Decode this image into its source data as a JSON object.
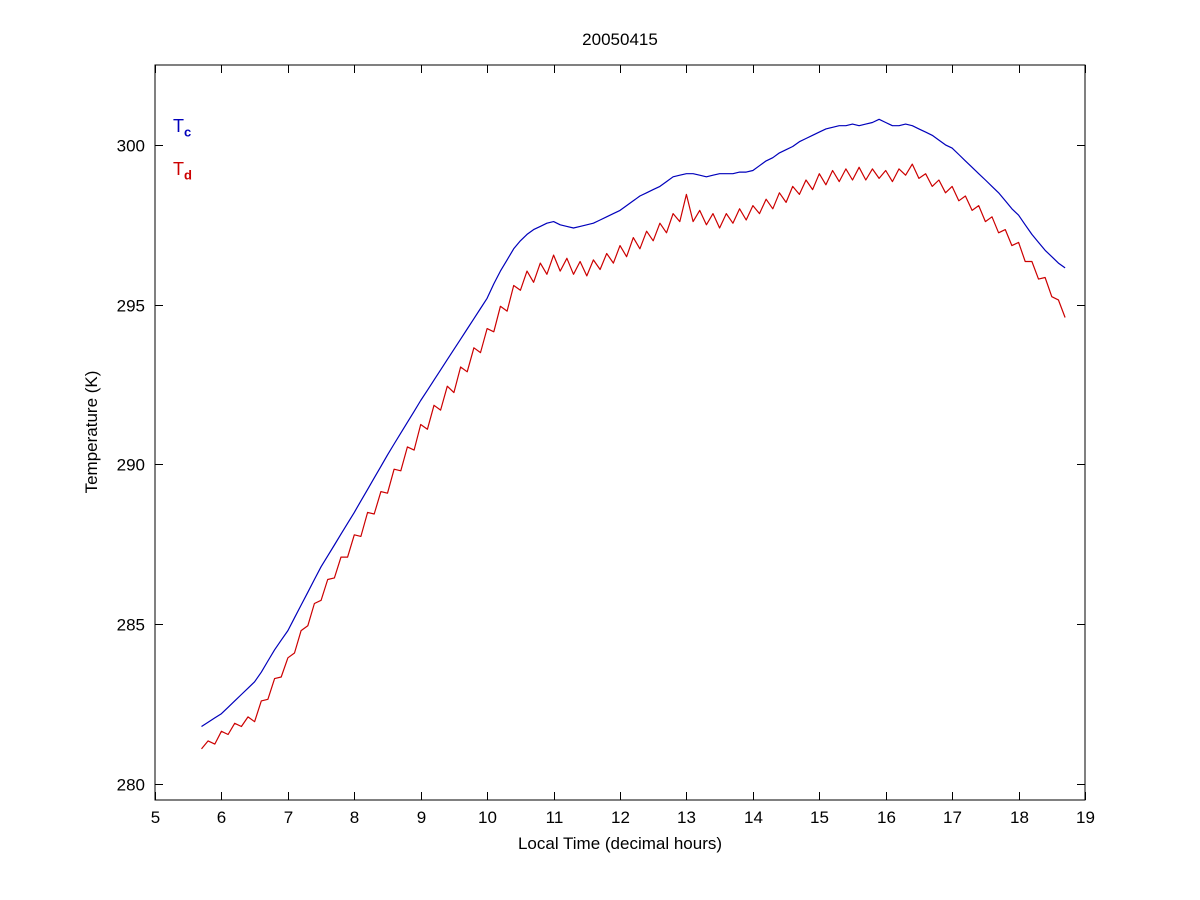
{
  "chart_data": {
    "type": "line",
    "title": "20050415",
    "xlabel": "Local Time (decimal hours)",
    "ylabel": "Temperature (K)",
    "xlim": [
      5,
      19
    ],
    "ylim": [
      279.5,
      302.5
    ],
    "xticks": [
      5,
      6,
      7,
      8,
      9,
      10,
      11,
      12,
      13,
      14,
      15,
      16,
      17,
      18,
      19
    ],
    "yticks": [
      280,
      285,
      290,
      295,
      300
    ],
    "grid": false,
    "legend_position": "top-left-inside",
    "x_start": 5.7,
    "x_step": 0.1,
    "axis_color": "#000000",
    "background_color": "#ffffff",
    "legend": [
      {
        "main": "T",
        "sub": "c",
        "color": "#0000bb"
      },
      {
        "main": "T",
        "sub": "d",
        "color": "#cc0000"
      }
    ],
    "series": [
      {
        "name": "Tc",
        "color": "#0000bb",
        "values": [
          281.8,
          281.93,
          282.07,
          282.2,
          282.4,
          282.6,
          282.8,
          283.0,
          283.2,
          283.5,
          283.85,
          284.2,
          284.5,
          284.8,
          285.2,
          285.6,
          286.0,
          286.4,
          286.8,
          287.14,
          287.48,
          287.82,
          288.16,
          288.5,
          288.86,
          289.22,
          289.58,
          289.94,
          290.3,
          290.64,
          290.98,
          291.32,
          291.66,
          292.0,
          292.32,
          292.64,
          292.96,
          293.28,
          293.6,
          293.92,
          294.24,
          294.56,
          294.88,
          295.2,
          295.65,
          296.05,
          296.4,
          296.75,
          297.0,
          297.2,
          297.35,
          297.45,
          297.55,
          297.6,
          297.5,
          297.45,
          297.4,
          297.45,
          297.5,
          297.55,
          297.65,
          297.75,
          297.85,
          297.95,
          298.1,
          298.25,
          298.4,
          298.5,
          298.6,
          298.7,
          298.85,
          299.0,
          299.05,
          299.1,
          299.1,
          299.05,
          299.0,
          299.05,
          299.1,
          299.1,
          299.1,
          299.15,
          299.15,
          299.2,
          299.35,
          299.5,
          299.6,
          299.75,
          299.85,
          299.95,
          300.1,
          300.2,
          300.3,
          300.4,
          300.5,
          300.55,
          300.6,
          300.6,
          300.65,
          300.6,
          300.65,
          300.7,
          300.8,
          300.7,
          300.6,
          300.6,
          300.65,
          300.6,
          300.5,
          300.4,
          300.3,
          300.15,
          300.0,
          299.9,
          299.7,
          299.5,
          299.3,
          299.1,
          298.9,
          298.7,
          298.5,
          298.25,
          298.0,
          297.8,
          297.5,
          297.2,
          296.95,
          296.7,
          296.5,
          296.3,
          296.15
        ]
      },
      {
        "name": "Td",
        "color": "#cc0000",
        "values": [
          281.1,
          281.35,
          281.25,
          281.65,
          281.55,
          281.9,
          281.8,
          282.1,
          281.95,
          282.6,
          282.65,
          283.3,
          283.35,
          283.95,
          284.1,
          284.8,
          284.95,
          285.65,
          285.75,
          286.4,
          286.45,
          287.1,
          287.1,
          287.8,
          287.75,
          288.5,
          288.45,
          289.15,
          289.1,
          289.85,
          289.8,
          290.55,
          290.45,
          291.25,
          291.1,
          291.85,
          291.7,
          292.45,
          292.25,
          293.05,
          292.9,
          293.65,
          293.5,
          294.25,
          294.15,
          294.95,
          294.8,
          295.6,
          295.45,
          296.05,
          295.7,
          296.3,
          295.95,
          296.55,
          296.05,
          296.45,
          295.95,
          296.35,
          295.9,
          296.4,
          296.1,
          296.6,
          296.3,
          296.85,
          296.5,
          297.1,
          296.75,
          297.3,
          297.0,
          297.55,
          297.25,
          297.85,
          297.6,
          298.45,
          297.6,
          297.95,
          297.5,
          297.85,
          297.4,
          297.85,
          297.55,
          298.0,
          297.65,
          298.1,
          297.85,
          298.3,
          298.0,
          298.5,
          298.2,
          298.7,
          298.45,
          298.9,
          298.6,
          299.1,
          298.75,
          299.2,
          298.85,
          299.25,
          298.9,
          299.3,
          298.9,
          299.25,
          298.95,
          299.2,
          298.85,
          299.25,
          299.05,
          299.4,
          298.95,
          299.1,
          298.7,
          298.9,
          298.5,
          298.7,
          298.25,
          298.4,
          297.95,
          298.1,
          297.6,
          297.75,
          297.25,
          297.35,
          296.85,
          296.95,
          296.35,
          296.35,
          295.8,
          295.85,
          295.25,
          295.15,
          294.6
        ]
      }
    ]
  }
}
